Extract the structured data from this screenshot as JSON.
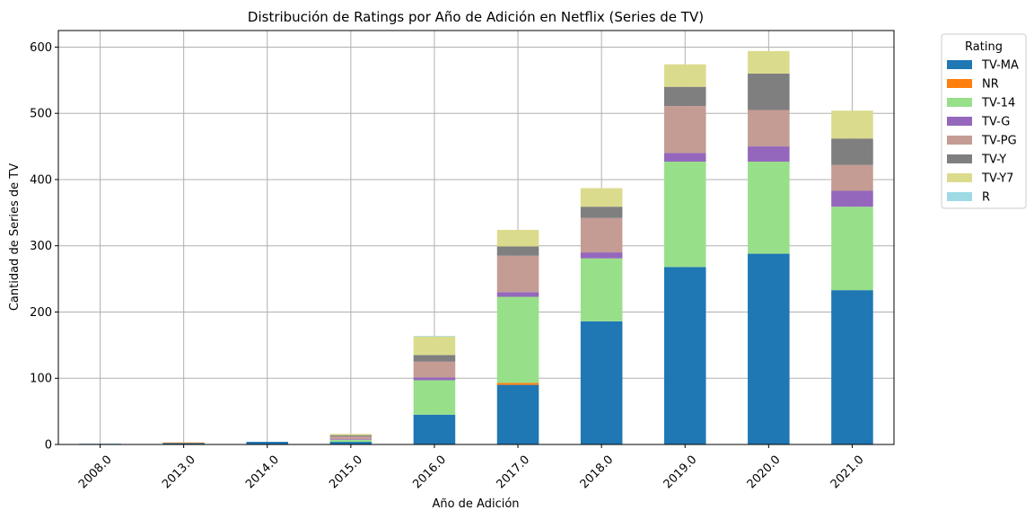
{
  "chart_data": {
    "type": "bar",
    "stacked": true,
    "title": "Distribución de Ratings por Año de Adición en Netflix (Series de TV)",
    "xlabel": "Año de Adición",
    "ylabel": "Cantidad de Series de TV",
    "ylim": [
      0,
      625
    ],
    "yticks": [
      0,
      100,
      200,
      300,
      400,
      500,
      600
    ],
    "grid": true,
    "legend": {
      "title": "Rating",
      "placement": "outside-top-right"
    },
    "categories": [
      "2008.0",
      "2013.0",
      "2014.0",
      "2015.0",
      "2016.0",
      "2017.0",
      "2018.0",
      "2019.0",
      "2020.0",
      "2021.0"
    ],
    "series": [
      {
        "name": "TV-MA",
        "color": "#1f77b4",
        "values": [
          1,
          2,
          4,
          4,
          45,
          90,
          186,
          268,
          288,
          233
        ]
      },
      {
        "name": "NR",
        "color": "#ff7f0e",
        "values": [
          0,
          1,
          0,
          0,
          0,
          3,
          0,
          0,
          0,
          0
        ]
      },
      {
        "name": "TV-14",
        "color": "#98df8a",
        "values": [
          0,
          0,
          0,
          3,
          52,
          130,
          95,
          159,
          139,
          126
        ]
      },
      {
        "name": "TV-G",
        "color": "#9467bd",
        "values": [
          0,
          0,
          0,
          1,
          4,
          7,
          9,
          13,
          23,
          24
        ]
      },
      {
        "name": "TV-PG",
        "color": "#c49c94",
        "values": [
          0,
          0,
          0,
          4,
          24,
          55,
          52,
          71,
          55,
          39
        ]
      },
      {
        "name": "TV-Y",
        "color": "#7f7f7f",
        "values": [
          0,
          0,
          0,
          2,
          10,
          14,
          17,
          29,
          55,
          40
        ]
      },
      {
        "name": "TV-Y7",
        "color": "#dbdb8d",
        "values": [
          0,
          0,
          0,
          2,
          28,
          25,
          28,
          34,
          34,
          42
        ]
      },
      {
        "name": "R",
        "color": "#9edae5",
        "values": [
          0,
          0,
          0,
          0,
          1,
          0,
          0,
          0,
          0,
          0
        ]
      }
    ]
  }
}
